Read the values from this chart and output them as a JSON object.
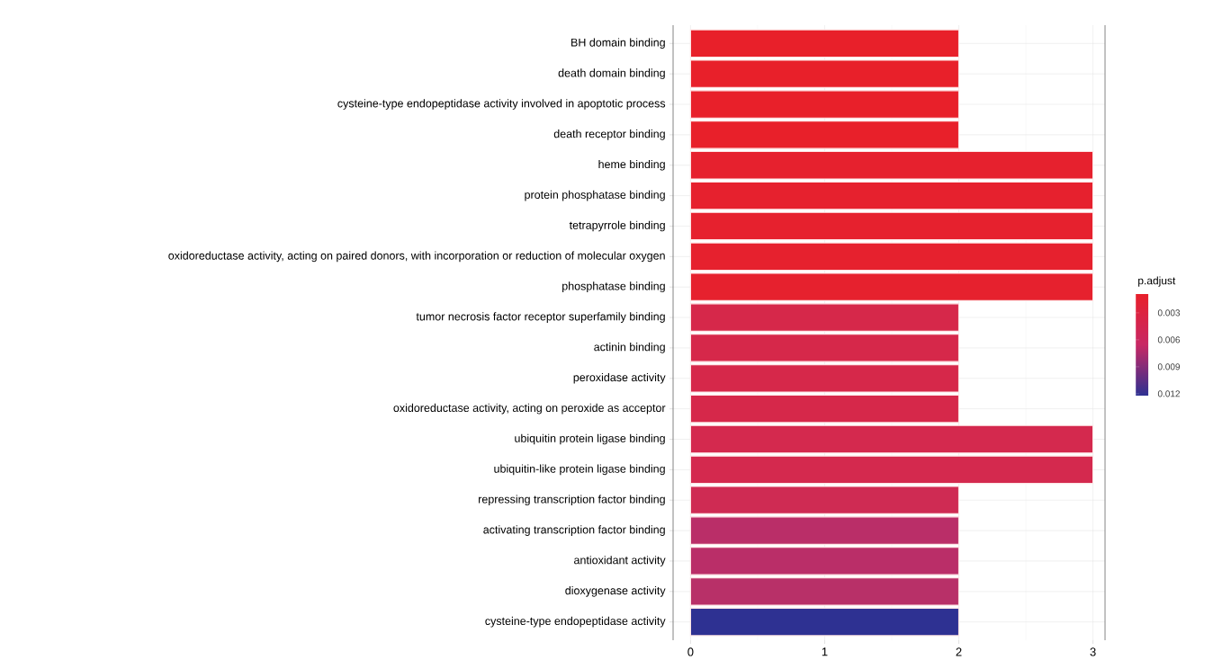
{
  "chart_data": {
    "type": "bar",
    "orientation": "horizontal",
    "categories": [
      "BH domain binding",
      "death domain binding",
      "cysteine-type endopeptidase activity involved in apoptotic process",
      "death receptor binding",
      "heme binding",
      "protein phosphatase binding",
      "tetrapyrrole binding",
      "oxidoreductase activity, acting on paired donors, with incorporation or reduction of molecular oxygen",
      "phosphatase binding",
      "tumor necrosis factor receptor superfamily binding",
      "actinin binding",
      "peroxidase activity",
      "oxidoreductase activity, acting on peroxide as acceptor",
      "ubiquitin protein ligase binding",
      "ubiquitin-like protein ligase binding",
      "repressing transcription factor binding",
      "activating transcription factor binding",
      "antioxidant activity",
      "dioxygenase activity",
      "cysteine-type endopeptidase activity"
    ],
    "values": [
      2,
      2,
      2,
      2,
      3,
      3,
      3,
      3,
      3,
      2,
      2,
      2,
      2,
      3,
      3,
      2,
      2,
      2,
      2,
      2
    ],
    "colors": [
      "#e8202a",
      "#e8202a",
      "#e8202a",
      "#e8202a",
      "#e6212e",
      "#e6212e",
      "#e6212e",
      "#e6212e",
      "#e6212e",
      "#d6284a",
      "#d6284a",
      "#d6284a",
      "#d6284a",
      "#d4294e",
      "#d4294e",
      "#cf2b53",
      "#ba2e68",
      "#ba2e68",
      "#b83068",
      "#2e3192"
    ],
    "xlim": [
      -0.13,
      3.09
    ],
    "xticks": [
      0,
      1,
      2,
      3
    ],
    "grid": true,
    "clabel": "p.adjust",
    "clim": [
      0.0122,
      0.0009
    ],
    "cticks": [
      0.003,
      0.006,
      0.009,
      0.012
    ]
  }
}
